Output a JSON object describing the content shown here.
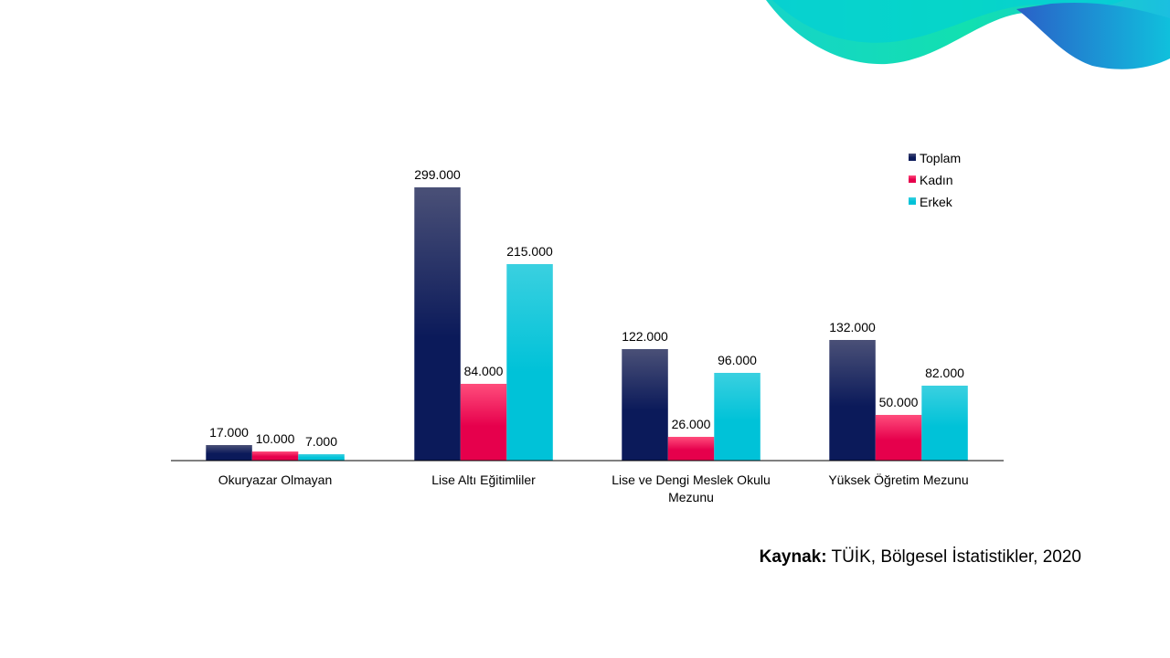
{
  "chart_data": {
    "type": "bar",
    "categories": [
      [
        "Okuryazar Olmayan"
      ],
      [
        "Lise Altı Eğitimliler"
      ],
      [
        "Lise ve Dengi Meslek Okulu",
        "Mezunu"
      ],
      [
        "Yüksek Öğretim Mezunu"
      ]
    ],
    "series": [
      {
        "name": "Toplam",
        "values": [
          17000,
          299000,
          122000,
          132000
        ],
        "labels": [
          "17.000",
          "299.000",
          "122.000",
          "132.000"
        ],
        "color_top": "#4a5077",
        "color_bottom": "#0b1a5a"
      },
      {
        "name": "Kadın",
        "values": [
          10000,
          84000,
          26000,
          50000
        ],
        "labels": [
          "10.000",
          "84.000",
          "26.000",
          "50.000"
        ],
        "color_top": "#ff4d7c",
        "color_bottom": "#e6004c"
      },
      {
        "name": "Erkek",
        "values": [
          7000,
          215000,
          96000,
          82000
        ],
        "labels": [
          "7.000",
          "215.000",
          "96.000",
          "82.000"
        ],
        "color_top": "#3ad0e0",
        "color_bottom": "#00c2d8"
      }
    ],
    "ylim": [
      0,
      320000
    ],
    "grid": false,
    "legend_position": "top-right"
  },
  "source": {
    "label": "Kaynak:",
    "text": "TÜİK, Bölgesel İstatistikler, 2020"
  }
}
